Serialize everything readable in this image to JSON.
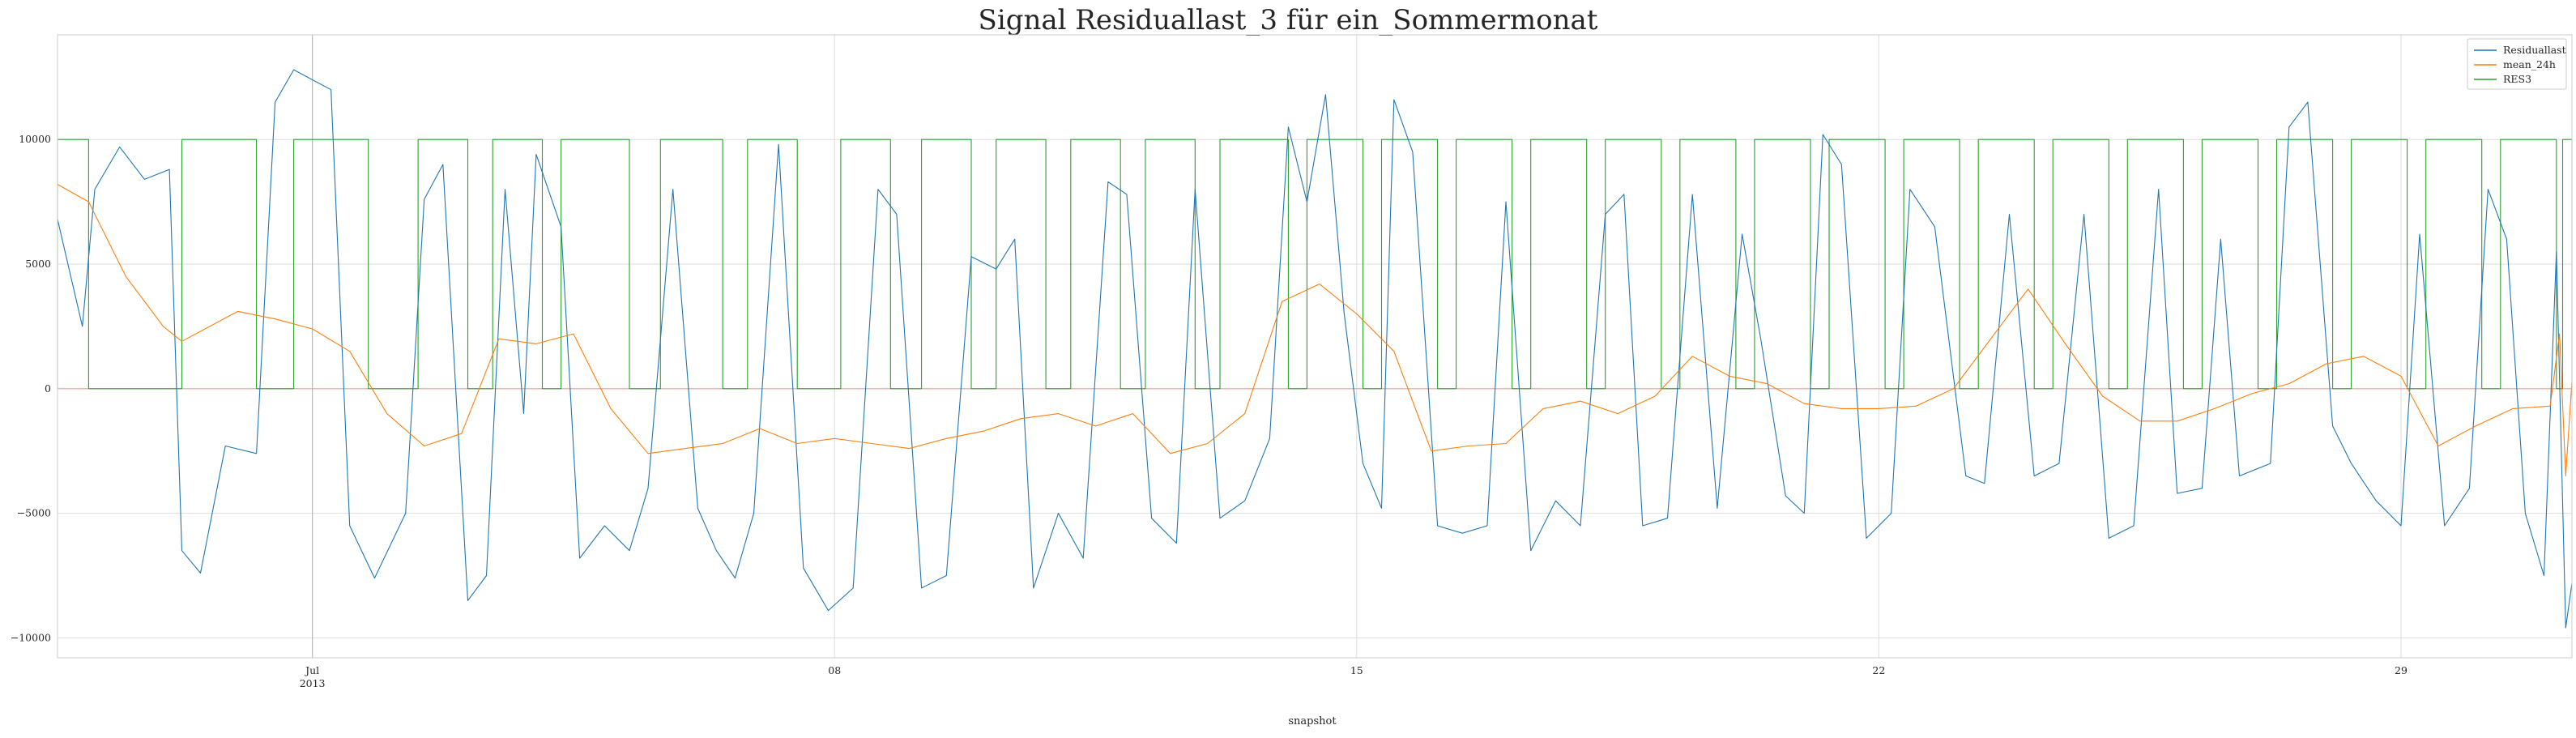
{
  "chart_data": {
    "type": "line",
    "title": "Signal Residuallast_3 für ein_Sommermonat",
    "xlabel": "snapshot",
    "ylabel": "",
    "xlim": [
      "2013-06-27T14:00",
      "2013-07-31T07:00"
    ],
    "ylim": [
      -10800,
      14200
    ],
    "yticks": [
      -10000,
      -5000,
      0,
      5000,
      10000
    ],
    "yticklabels": [
      "−10000",
      "−5000",
      "0",
      "5000",
      "10000"
    ],
    "xticks": [
      {
        "date": "2013-07-01",
        "label": "Jul",
        "sublabel": "2013"
      },
      {
        "date": "2013-07-08",
        "label": "08",
        "sublabel": ""
      },
      {
        "date": "2013-07-15",
        "label": "15",
        "sublabel": ""
      },
      {
        "date": "2013-07-22",
        "label": "22",
        "sublabel": ""
      },
      {
        "date": "2013-07-29",
        "label": "29",
        "sublabel": ""
      }
    ],
    "grid": true,
    "legend_position": "top-right",
    "series": [
      {
        "name": "Residuallast",
        "color": "#1f77b4",
        "points": [
          [
            "2013-06-27T14:00",
            6800
          ],
          [
            "2013-06-27T22:00",
            2500
          ],
          [
            "2013-06-28T02:00",
            8000
          ],
          [
            "2013-06-28T10:00",
            9700
          ],
          [
            "2013-06-28T18:00",
            8400
          ],
          [
            "2013-06-29T02:00",
            8800
          ],
          [
            "2013-06-29T06:00",
            -6500
          ],
          [
            "2013-06-29T12:00",
            -7400
          ],
          [
            "2013-06-29T20:00",
            -2300
          ],
          [
            "2013-06-30T06:00",
            -2600
          ],
          [
            "2013-06-30T12:00",
            11500
          ],
          [
            "2013-06-30T18:00",
            12800
          ],
          [
            "2013-07-01T06:00",
            12000
          ],
          [
            "2013-07-01T12:00",
            -5500
          ],
          [
            "2013-07-01T20:00",
            -7600
          ],
          [
            "2013-07-02T06:00",
            -5000
          ],
          [
            "2013-07-02T12:00",
            7600
          ],
          [
            "2013-07-02T18:00",
            9000
          ],
          [
            "2013-07-03T02:00",
            -8500
          ],
          [
            "2013-07-03T08:00",
            -7500
          ],
          [
            "2013-07-03T14:00",
            8000
          ],
          [
            "2013-07-03T20:00",
            -1000
          ],
          [
            "2013-07-04T00:00",
            9400
          ],
          [
            "2013-07-04T08:00",
            6500
          ],
          [
            "2013-07-04T14:00",
            -6800
          ],
          [
            "2013-07-04T22:00",
            -5500
          ],
          [
            "2013-07-05T06:00",
            -6500
          ],
          [
            "2013-07-05T12:00",
            -4000
          ],
          [
            "2013-07-05T20:00",
            8000
          ],
          [
            "2013-07-06T04:00",
            -4800
          ],
          [
            "2013-07-06T10:00",
            -6500
          ],
          [
            "2013-07-06T16:00",
            -7600
          ],
          [
            "2013-07-06T22:00",
            -5000
          ],
          [
            "2013-07-07T06:00",
            9800
          ],
          [
            "2013-07-07T14:00",
            -7200
          ],
          [
            "2013-07-07T22:00",
            -8900
          ],
          [
            "2013-07-08T06:00",
            -8000
          ],
          [
            "2013-07-08T14:00",
            8000
          ],
          [
            "2013-07-08T20:00",
            7000
          ],
          [
            "2013-07-09T04:00",
            -8000
          ],
          [
            "2013-07-09T12:00",
            -7500
          ],
          [
            "2013-07-09T20:00",
            5300
          ],
          [
            "2013-07-10T04:00",
            4800
          ],
          [
            "2013-07-10T10:00",
            6000
          ],
          [
            "2013-07-10T16:00",
            -8000
          ],
          [
            "2013-07-11T00:00",
            -5000
          ],
          [
            "2013-07-11T08:00",
            -6800
          ],
          [
            "2013-07-11T16:00",
            8300
          ],
          [
            "2013-07-11T22:00",
            7800
          ],
          [
            "2013-07-12T06:00",
            -5200
          ],
          [
            "2013-07-12T14:00",
            -6200
          ],
          [
            "2013-07-12T20:00",
            8000
          ],
          [
            "2013-07-13T04:00",
            -5200
          ],
          [
            "2013-07-13T12:00",
            -4500
          ],
          [
            "2013-07-13T20:00",
            -2000
          ],
          [
            "2013-07-14T02:00",
            10500
          ],
          [
            "2013-07-14T08:00",
            7500
          ],
          [
            "2013-07-14T14:00",
            11800
          ],
          [
            "2013-07-14T20:00",
            3000
          ],
          [
            "2013-07-15T02:00",
            -3000
          ],
          [
            "2013-07-15T08:00",
            -4800
          ],
          [
            "2013-07-15T12:00",
            11600
          ],
          [
            "2013-07-15T18:00",
            9500
          ],
          [
            "2013-07-16T02:00",
            -5500
          ],
          [
            "2013-07-16T10:00",
            -5800
          ],
          [
            "2013-07-16T18:00",
            -5500
          ],
          [
            "2013-07-17T00:00",
            7500
          ],
          [
            "2013-07-17T08:00",
            -6500
          ],
          [
            "2013-07-17T16:00",
            -4500
          ],
          [
            "2013-07-18T00:00",
            -5500
          ],
          [
            "2013-07-18T08:00",
            7000
          ],
          [
            "2013-07-18T14:00",
            7800
          ],
          [
            "2013-07-18T20:00",
            -5500
          ],
          [
            "2013-07-19T04:00",
            -5200
          ],
          [
            "2013-07-19T12:00",
            7800
          ],
          [
            "2013-07-19T20:00",
            -4800
          ],
          [
            "2013-07-20T04:00",
            6200
          ],
          [
            "2013-07-20T10:00",
            2000
          ],
          [
            "2013-07-20T18:00",
            -4300
          ],
          [
            "2013-07-21T00:00",
            -5000
          ],
          [
            "2013-07-21T06:00",
            10200
          ],
          [
            "2013-07-21T12:00",
            9000
          ],
          [
            "2013-07-21T20:00",
            -6000
          ],
          [
            "2013-07-22T04:00",
            -5000
          ],
          [
            "2013-07-22T10:00",
            8000
          ],
          [
            "2013-07-22T18:00",
            6500
          ],
          [
            "2013-07-23T04:00",
            -3500
          ],
          [
            "2013-07-23T10:00",
            -3800
          ],
          [
            "2013-07-23T18:00",
            7000
          ],
          [
            "2013-07-24T02:00",
            -3500
          ],
          [
            "2013-07-24T10:00",
            -3000
          ],
          [
            "2013-07-24T18:00",
            7000
          ],
          [
            "2013-07-25T02:00",
            -6000
          ],
          [
            "2013-07-25T10:00",
            -5500
          ],
          [
            "2013-07-25T18:00",
            8000
          ],
          [
            "2013-07-26T00:00",
            -4200
          ],
          [
            "2013-07-26T08:00",
            -4000
          ],
          [
            "2013-07-26T14:00",
            6000
          ],
          [
            "2013-07-26T20:00",
            -3500
          ],
          [
            "2013-07-27T06:00",
            -3000
          ],
          [
            "2013-07-27T12:00",
            10500
          ],
          [
            "2013-07-27T18:00",
            11500
          ],
          [
            "2013-07-28T02:00",
            -1500
          ],
          [
            "2013-07-28T08:00",
            -3000
          ],
          [
            "2013-07-28T16:00",
            -4500
          ],
          [
            "2013-07-29T00:00",
            -5500
          ],
          [
            "2013-07-29T06:00",
            6200
          ],
          [
            "2013-07-29T14:00",
            -5500
          ],
          [
            "2013-07-29T22:00",
            -4000
          ],
          [
            "2013-07-30T04:00",
            8000
          ],
          [
            "2013-07-30T10:00",
            6000
          ],
          [
            "2013-07-30T16:00",
            -5000
          ],
          [
            "2013-07-30T22:00",
            -7500
          ],
          [
            "2013-07-31T02:00",
            5500
          ],
          [
            "2013-07-31T05:00",
            -9600
          ],
          [
            "2013-07-31T07:00",
            -7800
          ]
        ]
      },
      {
        "name": "mean_24h",
        "color": "#ff7f0e",
        "points": [
          [
            "2013-06-27T14:00",
            8200
          ],
          [
            "2013-06-28T00:00",
            7500
          ],
          [
            "2013-06-28T12:00",
            4500
          ],
          [
            "2013-06-29T00:00",
            2500
          ],
          [
            "2013-06-29T06:00",
            1900
          ],
          [
            "2013-06-30T00:00",
            3100
          ],
          [
            "2013-06-30T12:00",
            2800
          ],
          [
            "2013-07-01T00:00",
            2400
          ],
          [
            "2013-07-01T12:00",
            1500
          ],
          [
            "2013-07-02T00:00",
            -1000
          ],
          [
            "2013-07-02T12:00",
            -2300
          ],
          [
            "2013-07-03T00:00",
            -1800
          ],
          [
            "2013-07-03T12:00",
            2000
          ],
          [
            "2013-07-04T00:00",
            1800
          ],
          [
            "2013-07-04T12:00",
            2200
          ],
          [
            "2013-07-05T00:00",
            -800
          ],
          [
            "2013-07-05T12:00",
            -2600
          ],
          [
            "2013-07-06T00:00",
            -2400
          ],
          [
            "2013-07-06T12:00",
            -2200
          ],
          [
            "2013-07-07T00:00",
            -1600
          ],
          [
            "2013-07-07T12:00",
            -2200
          ],
          [
            "2013-07-08T00:00",
            -2000
          ],
          [
            "2013-07-08T12:00",
            -2200
          ],
          [
            "2013-07-09T00:00",
            -2400
          ],
          [
            "2013-07-09T12:00",
            -2000
          ],
          [
            "2013-07-10T00:00",
            -1700
          ],
          [
            "2013-07-10T12:00",
            -1200
          ],
          [
            "2013-07-11T00:00",
            -1000
          ],
          [
            "2013-07-11T12:00",
            -1500
          ],
          [
            "2013-07-12T00:00",
            -1000
          ],
          [
            "2013-07-12T12:00",
            -2600
          ],
          [
            "2013-07-13T00:00",
            -2200
          ],
          [
            "2013-07-13T12:00",
            -1000
          ],
          [
            "2013-07-14T00:00",
            3500
          ],
          [
            "2013-07-14T12:00",
            4200
          ],
          [
            "2013-07-15T00:00",
            3000
          ],
          [
            "2013-07-15T12:00",
            1500
          ],
          [
            "2013-07-16T00:00",
            -2500
          ],
          [
            "2013-07-16T12:00",
            -2300
          ],
          [
            "2013-07-17T00:00",
            -2200
          ],
          [
            "2013-07-17T12:00",
            -800
          ],
          [
            "2013-07-18T00:00",
            -500
          ],
          [
            "2013-07-18T12:00",
            -1000
          ],
          [
            "2013-07-19T00:00",
            -300
          ],
          [
            "2013-07-19T12:00",
            1300
          ],
          [
            "2013-07-20T00:00",
            500
          ],
          [
            "2013-07-20T12:00",
            200
          ],
          [
            "2013-07-21T00:00",
            -600
          ],
          [
            "2013-07-21T12:00",
            -800
          ],
          [
            "2013-07-22T00:00",
            -800
          ],
          [
            "2013-07-22T12:00",
            -700
          ],
          [
            "2013-07-23T00:00",
            0
          ],
          [
            "2013-07-23T12:00",
            2000
          ],
          [
            "2013-07-24T00:00",
            4000
          ],
          [
            "2013-07-24T12:00",
            1800
          ],
          [
            "2013-07-25T00:00",
            -300
          ],
          [
            "2013-07-25T12:00",
            -1300
          ],
          [
            "2013-07-26T00:00",
            -1300
          ],
          [
            "2013-07-26T12:00",
            -800
          ],
          [
            "2013-07-27T00:00",
            -200
          ],
          [
            "2013-07-27T12:00",
            200
          ],
          [
            "2013-07-28T00:00",
            1000
          ],
          [
            "2013-07-28T12:00",
            1300
          ],
          [
            "2013-07-29T00:00",
            500
          ],
          [
            "2013-07-29T12:00",
            -2300
          ],
          [
            "2013-07-30T00:00",
            -1500
          ],
          [
            "2013-07-30T12:00",
            -800
          ],
          [
            "2013-07-31T00:00",
            -700
          ],
          [
            "2013-07-31T03:00",
            2200
          ],
          [
            "2013-07-31T05:00",
            -3500
          ],
          [
            "2013-07-31T07:00",
            300
          ]
        ]
      },
      {
        "name": "RES3",
        "color": "#2ca02c",
        "high": 10000,
        "low": 0,
        "high_intervals": [
          [
            "2013-06-27T14:00",
            "2013-06-28T00:00"
          ],
          [
            "2013-06-29T06:00",
            "2013-06-30T06:00"
          ],
          [
            "2013-06-30T18:00",
            "2013-07-01T18:00"
          ],
          [
            "2013-07-02T10:00",
            "2013-07-03T02:00"
          ],
          [
            "2013-07-03T10:00",
            "2013-07-04T02:00"
          ],
          [
            "2013-07-04T08:00",
            "2013-07-05T06:00"
          ],
          [
            "2013-07-05T16:00",
            "2013-07-06T12:00"
          ],
          [
            "2013-07-06T20:00",
            "2013-07-07T12:00"
          ],
          [
            "2013-07-08T02:00",
            "2013-07-08T18:00"
          ],
          [
            "2013-07-09T04:00",
            "2013-07-09T20:00"
          ],
          [
            "2013-07-10T04:00",
            "2013-07-10T20:00"
          ],
          [
            "2013-07-11T04:00",
            "2013-07-11T20:00"
          ],
          [
            "2013-07-12T04:00",
            "2013-07-12T20:00"
          ],
          [
            "2013-07-13T04:00",
            "2013-07-14T02:00"
          ],
          [
            "2013-07-14T08:00",
            "2013-07-15T02:00"
          ],
          [
            "2013-07-15T08:00",
            "2013-07-16T02:00"
          ],
          [
            "2013-07-16T08:00",
            "2013-07-17T02:00"
          ],
          [
            "2013-07-17T08:00",
            "2013-07-18T02:00"
          ],
          [
            "2013-07-18T08:00",
            "2013-07-19T02:00"
          ],
          [
            "2013-07-19T08:00",
            "2013-07-20T02:00"
          ],
          [
            "2013-07-20T08:00",
            "2013-07-21T02:00"
          ],
          [
            "2013-07-21T08:00",
            "2013-07-22T02:00"
          ],
          [
            "2013-07-22T08:00",
            "2013-07-23T02:00"
          ],
          [
            "2013-07-23T08:00",
            "2013-07-24T02:00"
          ],
          [
            "2013-07-24T08:00",
            "2013-07-25T02:00"
          ],
          [
            "2013-07-25T08:00",
            "2013-07-26T02:00"
          ],
          [
            "2013-07-26T08:00",
            "2013-07-27T02:00"
          ],
          [
            "2013-07-27T08:00",
            "2013-07-28T02:00"
          ],
          [
            "2013-07-28T08:00",
            "2013-07-29T02:00"
          ],
          [
            "2013-07-29T08:00",
            "2013-07-30T02:00"
          ],
          [
            "2013-07-30T08:00",
            "2013-07-31T02:00"
          ],
          [
            "2013-07-31T04:00",
            "2013-07-31T07:00"
          ]
        ]
      }
    ],
    "vlines": [
      "2013-07-01"
    ],
    "hlines": [
      {
        "y": 0,
        "color": "#ff9999"
      }
    ]
  }
}
